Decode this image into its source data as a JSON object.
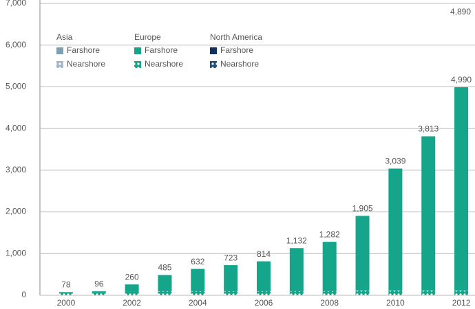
{
  "chart_data": {
    "type": "stacked-bar",
    "categories": [
      "2000",
      null,
      "2002",
      null,
      "2004",
      null,
      "2006",
      null,
      "2008",
      null,
      "2010",
      null,
      "2012"
    ],
    "series": [
      {
        "group": "Asia",
        "name": "Farshore",
        "color": "#7f9fb5",
        "pattern": false,
        "values": [
          0,
          0,
          0,
          0,
          0,
          0,
          0,
          0,
          0,
          0,
          0,
          0,
          0
        ]
      },
      {
        "group": "Asia",
        "name": "Nearshore",
        "color": "#9fb8c8",
        "pattern": true,
        "values": [
          0,
          0,
          0,
          0,
          0,
          0,
          0,
          0,
          0,
          0,
          0,
          0,
          0
        ]
      },
      {
        "group": "Europe",
        "name": "Farshore",
        "color": "#14a58a",
        "pattern": false,
        "values": [
          18,
          16,
          170,
          385,
          532,
          623,
          714,
          1032,
          1182,
          1795,
          2929,
          3703,
          4880
        ]
      },
      {
        "group": "Europe",
        "name": "Nearshore",
        "color": "#14a58a",
        "pattern": true,
        "values": [
          60,
          80,
          90,
          100,
          100,
          100,
          100,
          100,
          100,
          110,
          110,
          110,
          110
        ]
      },
      {
        "group": "North America",
        "name": "Farshore",
        "color": "#0f2f5f",
        "pattern": false,
        "values": [
          0,
          0,
          0,
          0,
          0,
          0,
          0,
          0,
          0,
          0,
          0,
          0,
          0
        ]
      },
      {
        "group": "North America",
        "name": "Nearshore",
        "color": "#1f4f7f",
        "pattern": true,
        "values": [
          0,
          0,
          0,
          0,
          0,
          0,
          0,
          0,
          0,
          0,
          0,
          0,
          0
        ]
      }
    ],
    "totals": [
      78,
      96,
      260,
      485,
      632,
      723,
      814,
      1132,
      1282,
      1905,
      3039,
      3813,
      4990
    ],
    "value_labels": [
      "78",
      "96",
      "260",
      "485",
      "632",
      "723",
      "814",
      "1,132",
      "1,282",
      "1,905",
      "3,039",
      "3,813",
      "4,990"
    ],
    "annotation": "4,890",
    "ylim": [
      0,
      7000
    ],
    "yticks": [
      0,
      {
        "value": 1000,
        "label": "1,000"
      },
      {
        "value": 2000,
        "label": "2,000"
      },
      {
        "value": 3000,
        "label": "3,000"
      },
      {
        "value": 4000,
        "label": "4,000"
      },
      {
        "value": 5000,
        "label": "5,000"
      },
      {
        "value": 6000,
        "label": "6,000"
      },
      {
        "value": 7000,
        "label": "7,000"
      }
    ],
    "grid": true
  }
}
